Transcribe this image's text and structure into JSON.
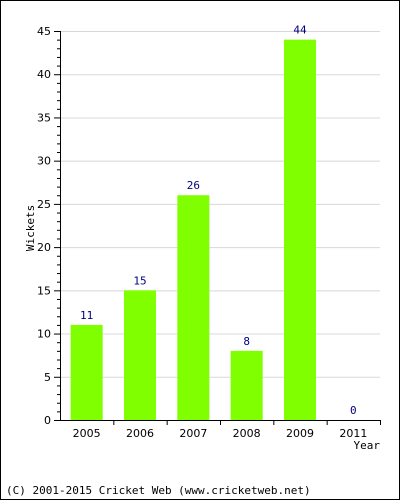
{
  "chart_data": {
    "type": "bar",
    "title": "",
    "xlabel": "Year",
    "ylabel": "Wickets",
    "categories": [
      "2005",
      "2006",
      "2007",
      "2008",
      "2009",
      "2011"
    ],
    "values": [
      11,
      15,
      26,
      8,
      44,
      0
    ],
    "data_labels": [
      "11",
      "15",
      "26",
      "8",
      "44",
      "0"
    ],
    "ylim": [
      0,
      45
    ],
    "yticks": [
      "0",
      "5",
      "10",
      "15",
      "20",
      "25",
      "30",
      "35",
      "40",
      "45"
    ],
    "grid": true,
    "legend": "none",
    "bar_color": "#80ff00",
    "label_color": "#000080"
  },
  "footer": {
    "copyright": "(C) 2001-2015 Cricket Web (www.cricketweb.net)"
  }
}
